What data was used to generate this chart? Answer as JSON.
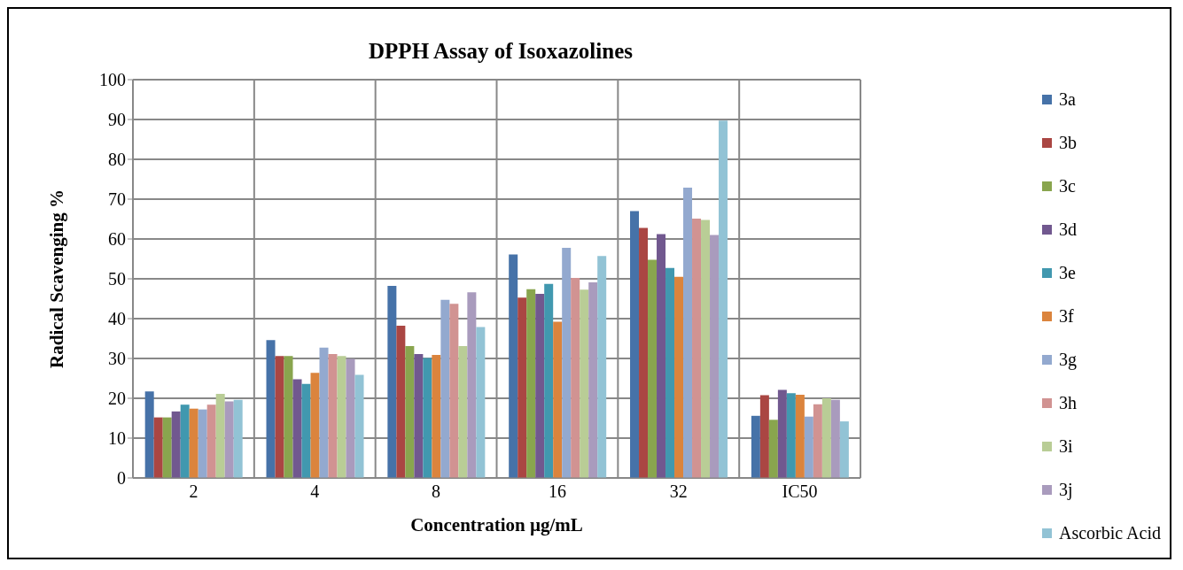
{
  "chart_data": {
    "type": "bar",
    "title": "DPPH Assay of Isoxazolines",
    "xlabel": "Concentration µg/mL",
    "ylabel": "Radical Scavenging %",
    "categories": [
      "2",
      "4",
      "8",
      "16",
      "32",
      "IC50"
    ],
    "series": [
      {
        "name": "3a",
        "color": "#4672a8",
        "values": [
          21.7,
          34.6,
          48.2,
          56.1,
          67,
          15.6
        ]
      },
      {
        "name": "3b",
        "color": "#aa4643",
        "values": [
          15.2,
          30.6,
          38.2,
          45.3,
          62.8,
          20.8
        ]
      },
      {
        "name": "3c",
        "color": "#89a54e",
        "values": [
          15.2,
          30.6,
          33.1,
          47.4,
          54.8,
          14.6
        ]
      },
      {
        "name": "3d",
        "color": "#71588f",
        "values": [
          16.7,
          24.8,
          31.1,
          46.2,
          61.2,
          22.1
        ]
      },
      {
        "name": "3e",
        "color": "#4198af",
        "values": [
          18.4,
          23.6,
          30.1,
          48.7,
          52.7,
          21.3
        ]
      },
      {
        "name": "3f",
        "color": "#db843d",
        "values": [
          17.4,
          26.4,
          30.9,
          39.2,
          50.5,
          20.9
        ]
      },
      {
        "name": "3g",
        "color": "#93a9cf",
        "values": [
          17.2,
          32.7,
          44.7,
          57.8,
          72.9,
          15.4
        ]
      },
      {
        "name": "3h",
        "color": "#d19392",
        "values": [
          18.4,
          31.1,
          43.7,
          50.2,
          65.1,
          18.5
        ]
      },
      {
        "name": "3i",
        "color": "#b9cd96",
        "values": [
          21.1,
          30.6,
          33.1,
          47.3,
          64.8,
          20
        ]
      },
      {
        "name": "3j",
        "color": "#a99bbd",
        "values": [
          19.2,
          29.9,
          46.6,
          49.1,
          61,
          19.6
        ]
      },
      {
        "name": "Ascorbic Acid",
        "color": "#92c3d5",
        "values": [
          19.6,
          25.9,
          37.9,
          55.7,
          89.7,
          14.2
        ]
      }
    ],
    "ylim": [
      0,
      100
    ],
    "yticks": [
      0,
      10,
      20,
      30,
      40,
      50,
      60,
      70,
      80,
      90,
      100
    ],
    "grid": true,
    "legend": "right"
  }
}
